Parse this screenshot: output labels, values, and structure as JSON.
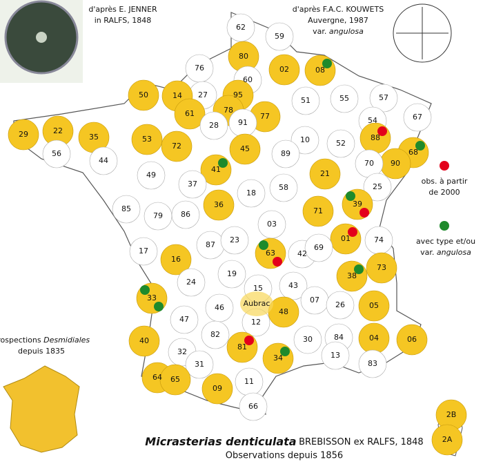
{
  "map": {
    "departments": [
      {
        "code": "62",
        "observed": false,
        "dots": []
      },
      {
        "code": "59",
        "observed": false,
        "dots": []
      },
      {
        "code": "80",
        "observed": true,
        "dots": []
      },
      {
        "code": "76",
        "observed": false,
        "dots": []
      },
      {
        "code": "02",
        "observed": true,
        "dots": []
      },
      {
        "code": "08",
        "observed": true,
        "dots": [
          "green"
        ]
      },
      {
        "code": "60",
        "observed": false,
        "dots": []
      },
      {
        "code": "27",
        "observed": false,
        "dots": []
      },
      {
        "code": "95",
        "observed": true,
        "dots": []
      },
      {
        "code": "50",
        "observed": true,
        "dots": []
      },
      {
        "code": "14",
        "observed": true,
        "dots": []
      },
      {
        "code": "51",
        "observed": false,
        "dots": []
      },
      {
        "code": "55",
        "observed": false,
        "dots": []
      },
      {
        "code": "57",
        "observed": false,
        "dots": []
      },
      {
        "code": "67",
        "observed": false,
        "dots": []
      },
      {
        "code": "78",
        "observed": true,
        "dots": []
      },
      {
        "code": "77",
        "observed": true,
        "dots": []
      },
      {
        "code": "61",
        "observed": true,
        "dots": []
      },
      {
        "code": "91",
        "observed": false,
        "dots": []
      },
      {
        "code": "28",
        "observed": false,
        "dots": []
      },
      {
        "code": "29",
        "observed": true,
        "dots": []
      },
      {
        "code": "22",
        "observed": true,
        "dots": []
      },
      {
        "code": "35",
        "observed": true,
        "dots": []
      },
      {
        "code": "53",
        "observed": true,
        "dots": []
      },
      {
        "code": "72",
        "observed": true,
        "dots": []
      },
      {
        "code": "54",
        "observed": false,
        "dots": []
      },
      {
        "code": "88",
        "observed": true,
        "dots": [
          "red"
        ]
      },
      {
        "code": "68",
        "observed": true,
        "dots": [
          "green"
        ]
      },
      {
        "code": "52",
        "observed": false,
        "dots": []
      },
      {
        "code": "10",
        "observed": false,
        "dots": []
      },
      {
        "code": "45",
        "observed": true,
        "dots": []
      },
      {
        "code": "89",
        "observed": false,
        "dots": []
      },
      {
        "code": "56",
        "observed": false,
        "dots": []
      },
      {
        "code": "41",
        "observed": true,
        "dots": [
          "green"
        ]
      },
      {
        "code": "90",
        "observed": true,
        "dots": []
      },
      {
        "code": "70",
        "observed": false,
        "dots": []
      },
      {
        "code": "44",
        "observed": false,
        "dots": []
      },
      {
        "code": "49",
        "observed": false,
        "dots": []
      },
      {
        "code": "37",
        "observed": false,
        "dots": []
      },
      {
        "code": "18",
        "observed": false,
        "dots": []
      },
      {
        "code": "58",
        "observed": false,
        "dots": []
      },
      {
        "code": "21",
        "observed": true,
        "dots": []
      },
      {
        "code": "25",
        "observed": false,
        "dots": []
      },
      {
        "code": "85",
        "observed": false,
        "dots": []
      },
      {
        "code": "79",
        "observed": false,
        "dots": []
      },
      {
        "code": "86",
        "observed": false,
        "dots": []
      },
      {
        "code": "36",
        "observed": true,
        "dots": []
      },
      {
        "code": "71",
        "observed": true,
        "dots": []
      },
      {
        "code": "39",
        "observed": true,
        "dots": [
          "green",
          "red"
        ]
      },
      {
        "code": "03",
        "observed": false,
        "dots": []
      },
      {
        "code": "01",
        "observed": true,
        "dots": [
          "red"
        ]
      },
      {
        "code": "74",
        "observed": false,
        "dots": []
      },
      {
        "code": "87",
        "observed": false,
        "dots": []
      },
      {
        "code": "23",
        "observed": false,
        "dots": []
      },
      {
        "code": "63",
        "observed": true,
        "dots": [
          "green",
          "red"
        ]
      },
      {
        "code": "42",
        "observed": false,
        "dots": []
      },
      {
        "code": "69",
        "observed": false,
        "dots": []
      },
      {
        "code": "17",
        "observed": false,
        "dots": []
      },
      {
        "code": "16",
        "observed": true,
        "dots": []
      },
      {
        "code": "73",
        "observed": true,
        "dots": []
      },
      {
        "code": "19",
        "observed": false,
        "dots": []
      },
      {
        "code": "38",
        "observed": true,
        "dots": [
          "green"
        ]
      },
      {
        "code": "24",
        "observed": false,
        "dots": []
      },
      {
        "code": "15",
        "observed": false,
        "dots": []
      },
      {
        "code": "43",
        "observed": false,
        "dots": []
      },
      {
        "code": "07",
        "observed": false,
        "dots": []
      },
      {
        "code": "26",
        "observed": false,
        "dots": []
      },
      {
        "code": "05",
        "observed": true,
        "dots": []
      },
      {
        "code": "33",
        "observed": true,
        "dots": [
          "green",
          "green"
        ]
      },
      {
        "code": "46",
        "observed": false,
        "dots": []
      },
      {
        "code": "12",
        "observed": false,
        "dots": []
      },
      {
        "code": "48",
        "observed": true,
        "dots": []
      },
      {
        "code": "47",
        "observed": false,
        "dots": []
      },
      {
        "code": "82",
        "observed": false,
        "dots": []
      },
      {
        "code": "30",
        "observed": false,
        "dots": []
      },
      {
        "code": "84",
        "observed": false,
        "dots": []
      },
      {
        "code": "04",
        "observed": true,
        "dots": []
      },
      {
        "code": "06",
        "observed": true,
        "dots": []
      },
      {
        "code": "40",
        "observed": true,
        "dots": []
      },
      {
        "code": "81",
        "observed": true,
        "dots": [
          "red"
        ]
      },
      {
        "code": "32",
        "observed": false,
        "dots": []
      },
      {
        "code": "34",
        "observed": true,
        "dots": [
          "green"
        ]
      },
      {
        "code": "13",
        "observed": false,
        "dots": []
      },
      {
        "code": "83",
        "observed": false,
        "dots": []
      },
      {
        "code": "31",
        "observed": false,
        "dots": []
      },
      {
        "code": "64",
        "observed": true,
        "dots": []
      },
      {
        "code": "65",
        "observed": true,
        "dots": []
      },
      {
        "code": "11",
        "observed": false,
        "dots": []
      },
      {
        "code": "09",
        "observed": true,
        "dots": []
      },
      {
        "code": "66",
        "observed": false,
        "dots": []
      },
      {
        "code": "2B",
        "observed": true,
        "dots": []
      },
      {
        "code": "2A",
        "observed": true,
        "dots": []
      }
    ],
    "region_label": "Aubrac",
    "credit_left": [
      "d'après E. JENNER",
      "in RALFS, 1848"
    ],
    "credit_right": [
      "d'après F.A.C. KOUWETS",
      "Auvergne, 1987",
      "var.",
      "angulosa"
    ],
    "legend_red": [
      "obs. à partir",
      "de 2000"
    ],
    "legend_green": [
      "avec type et/ou",
      "var.",
      "angulosa"
    ],
    "inset": {
      "line1": "Prospections",
      "italic": "Desmidiales",
      "line2": "depuis 1835"
    },
    "title": {
      "species": "Micrasterias denticulata",
      "author": "BREBISSON ex RALFS, 1848",
      "subtitle": "Observations depuis 1856"
    }
  }
}
